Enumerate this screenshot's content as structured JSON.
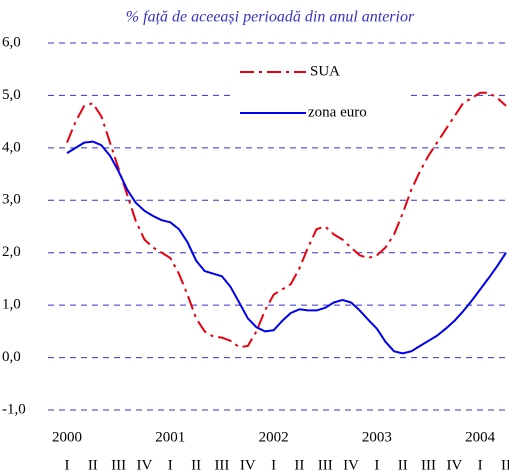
{
  "chart_data": {
    "type": "line",
    "subtitle": "% față de aceeași perioadă din anul anterior",
    "categories": [
      "I",
      null,
      null,
      "II",
      null,
      null,
      "III",
      null,
      null,
      "IV",
      null,
      null,
      "I",
      null,
      null,
      "II",
      null,
      null,
      "III",
      null,
      null,
      "IV",
      null,
      null,
      "I",
      null,
      null,
      "II",
      null,
      null,
      "III",
      null,
      null,
      "IV",
      null,
      null,
      "I",
      null,
      null,
      "II",
      null,
      null,
      "III",
      null,
      null,
      "IV",
      null,
      null,
      "I",
      null,
      null,
      "II"
    ],
    "year_labels": [
      "2000",
      "2001",
      "2002",
      "2003",
      "2004"
    ],
    "series": [
      {
        "name": "SUA",
        "color": "#e8000f",
        "dash": "dash-dot",
        "values": [
          4.1,
          4.5,
          4.8,
          4.85,
          4.6,
          4.1,
          3.6,
          3.1,
          2.6,
          2.25,
          2.1,
          2.0,
          1.9,
          1.6,
          1.2,
          0.75,
          0.5,
          0.4,
          0.38,
          0.32,
          0.2,
          0.22,
          0.5,
          0.9,
          1.2,
          1.3,
          1.4,
          1.7,
          2.1,
          2.45,
          2.5,
          2.35,
          2.25,
          2.1,
          1.95,
          1.9,
          1.95,
          2.1,
          2.35,
          2.75,
          3.2,
          3.55,
          3.85,
          4.1,
          4.35,
          4.6,
          4.85,
          4.95,
          5.05,
          5.05,
          4.95,
          4.8
        ]
      },
      {
        "name": "zona euro",
        "color": "#0000ee",
        "dash": "solid",
        "values": [
          3.9,
          4.0,
          4.1,
          4.12,
          4.05,
          3.85,
          3.55,
          3.2,
          2.95,
          2.8,
          2.7,
          2.62,
          2.58,
          2.45,
          2.2,
          1.85,
          1.65,
          1.6,
          1.55,
          1.35,
          1.05,
          0.75,
          0.58,
          0.5,
          0.52,
          0.7,
          0.85,
          0.92,
          0.9,
          0.9,
          0.95,
          1.05,
          1.1,
          1.05,
          0.9,
          0.72,
          0.55,
          0.3,
          0.12,
          0.08,
          0.12,
          0.22,
          0.32,
          0.42,
          0.55,
          0.7,
          0.88,
          1.08,
          1.3,
          1.52,
          1.75,
          2.0
        ]
      }
    ],
    "ylim": [
      -1,
      6
    ],
    "yticks": [
      {
        "value": -1,
        "label": "-1,0"
      },
      {
        "value": 0,
        "label": "0,0"
      },
      {
        "value": 1,
        "label": "1,0"
      },
      {
        "value": 2,
        "label": "2,0"
      },
      {
        "value": 3,
        "label": "3,0"
      },
      {
        "value": 4,
        "label": "4,0"
      },
      {
        "value": 5,
        "label": "5,0"
      },
      {
        "value": 6,
        "label": "6,0"
      }
    ],
    "grid": true,
    "grid_color": "#3333cc"
  }
}
